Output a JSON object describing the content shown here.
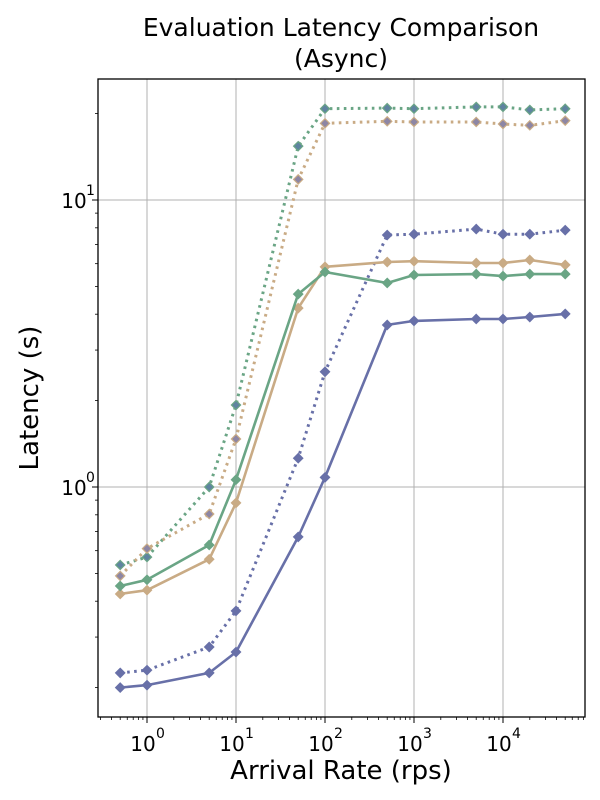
{
  "chart_data": {
    "type": "line",
    "title": "Evaluation Latency Comparison\n(Async)",
    "title_lines": [
      "Evaluation Latency Comparison",
      "(Async)"
    ],
    "xlabel": "Arrival Rate (rps)",
    "ylabel": "Latency (s)",
    "xscale": "log",
    "yscale": "log",
    "xlim": [
      0.3,
      80000
    ],
    "ylim": [
      0.165,
      27
    ],
    "grid": true,
    "legend": null,
    "x_ticks": [
      {
        "base": "10",
        "exp": "0",
        "value": 1
      },
      {
        "base": "10",
        "exp": "1",
        "value": 10
      },
      {
        "base": "10",
        "exp": "2",
        "value": 100
      },
      {
        "base": "10",
        "exp": "3",
        "value": 1000
      },
      {
        "base": "10",
        "exp": "4",
        "value": 10000
      }
    ],
    "y_ticks": [
      {
        "base": "10",
        "exp": "0",
        "value": 1
      },
      {
        "base": "10",
        "exp": "1",
        "value": 10
      }
    ],
    "x": [
      0.5,
      1,
      5,
      10,
      50,
      100,
      500,
      1000,
      5000,
      10000,
      20000,
      50000
    ],
    "series": [
      {
        "name": "green-dotted",
        "color": "#6aa585",
        "marker_color": "#5f84a0",
        "linestyle": "dotted",
        "values": [
          0.535,
          0.57,
          1.0,
          1.93,
          15.4,
          20.8,
          20.9,
          20.8,
          21.1,
          21.1,
          20.6,
          20.8
        ]
      },
      {
        "name": "tan-dotted",
        "color": "#c9ab85",
        "marker_color": "#8d86a4",
        "linestyle": "dotted",
        "values": [
          0.49,
          0.61,
          0.805,
          1.47,
          11.8,
          18.5,
          18.8,
          18.7,
          18.7,
          18.4,
          18.2,
          18.9
        ]
      },
      {
        "name": "blue-dotted",
        "color": "#6870a8",
        "marker_color": "#6870a8",
        "linestyle": "dotted",
        "values": [
          0.225,
          0.23,
          0.277,
          0.37,
          1.26,
          2.52,
          7.55,
          7.6,
          7.92,
          7.6,
          7.6,
          7.85
        ]
      },
      {
        "name": "tan-solid",
        "color": "#c9ab85",
        "marker_color": "#c9ab85",
        "linestyle": "solid",
        "values": [
          0.424,
          0.437,
          0.56,
          0.88,
          4.2,
          5.85,
          6.08,
          6.12,
          6.03,
          6.03,
          6.18,
          5.94
        ]
      },
      {
        "name": "green-solid",
        "color": "#6aa585",
        "marker_color": "#6aa585",
        "linestyle": "solid",
        "values": [
          0.452,
          0.475,
          0.628,
          1.06,
          4.7,
          5.61,
          5.14,
          5.48,
          5.52,
          5.43,
          5.52,
          5.52
        ]
      },
      {
        "name": "blue-solid",
        "color": "#6870a8",
        "marker_color": "#6870a8",
        "linestyle": "solid",
        "values": [
          0.2,
          0.204,
          0.225,
          0.266,
          0.67,
          1.08,
          3.67,
          3.79,
          3.85,
          3.85,
          3.91,
          4.01
        ]
      }
    ]
  }
}
